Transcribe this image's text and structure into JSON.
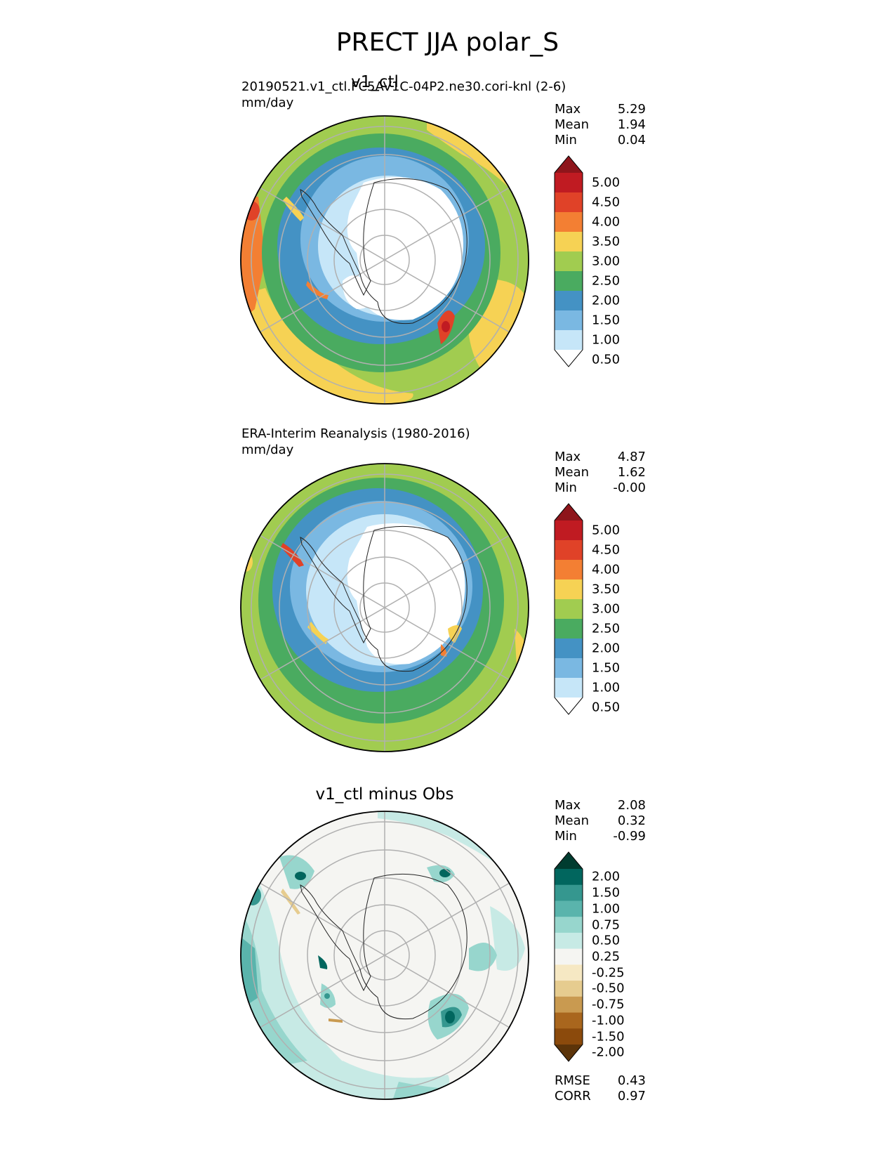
{
  "figure": {
    "title": "PRECT JJA polar_S"
  },
  "panels": [
    {
      "title": "v1_ctl",
      "subtitle": "20190521.v1_ctl.FC5AV1C-04P2.ne30.cori-knl (2-6)",
      "units": "mm/day",
      "stats": [
        {
          "label": "Max",
          "value": "5.29"
        },
        {
          "label": "Mean",
          "value": "1.94"
        },
        {
          "label": "Min",
          "value": "0.04"
        }
      ]
    },
    {
      "title": "",
      "subtitle": "ERA-Interim Reanalysis (1980-2016)",
      "units": "mm/day",
      "stats": [
        {
          "label": "Max",
          "value": "4.87"
        },
        {
          "label": "Mean",
          "value": "1.62"
        },
        {
          "label": "Min",
          "value": "-0.00"
        }
      ]
    },
    {
      "title": "v1_ctl minus Obs",
      "subtitle": "",
      "units": "",
      "stats": [
        {
          "label": "Max",
          "value": "2.08"
        },
        {
          "label": "Mean",
          "value": "0.32"
        },
        {
          "label": "Min",
          "value": "-0.99"
        }
      ],
      "extra_stats": [
        {
          "label": "RMSE",
          "value": "0.43"
        },
        {
          "label": "CORR",
          "value": "0.97"
        }
      ]
    }
  ],
  "chart_data": [
    {
      "type": "heatmap",
      "projection": "south polar stereographic",
      "title": "v1_ctl",
      "subtitle": "20190521.v1_ctl.FC5AV1C-04P2.ne30.cori-knl (2-6)",
      "units": "mm/day",
      "colorbar": {
        "levels": [
          "0.50",
          "1.00",
          "1.50",
          "2.00",
          "2.50",
          "3.00",
          "3.50",
          "4.00",
          "4.50",
          "5.00"
        ],
        "colors": [
          "#ffffff",
          "#c6e6f8",
          "#7ab8e2",
          "#4492c4",
          "#4aab60",
          "#a1cc50",
          "#f6d254",
          "#f37f33",
          "#e04228",
          "#c01b22",
          "#8e151b"
        ]
      },
      "stats": {
        "max": 5.29,
        "mean": 1.94,
        "min": 0.04
      }
    },
    {
      "type": "heatmap",
      "projection": "south polar stereographic",
      "subtitle": "ERA-Interim Reanalysis (1980-2016)",
      "units": "mm/day",
      "colorbar": {
        "levels": [
          "0.50",
          "1.00",
          "1.50",
          "2.00",
          "2.50",
          "3.00",
          "3.50",
          "4.00",
          "4.50",
          "5.00"
        ],
        "colors": [
          "#ffffff",
          "#c6e6f8",
          "#7ab8e2",
          "#4492c4",
          "#4aab60",
          "#a1cc50",
          "#f6d254",
          "#f37f33",
          "#e04228",
          "#c01b22",
          "#8e151b"
        ]
      },
      "stats": {
        "max": 4.87,
        "mean": 1.62,
        "min": -0.0
      }
    },
    {
      "type": "heatmap",
      "projection": "south polar stereographic",
      "title": "v1_ctl minus Obs",
      "colorbar": {
        "levels": [
          "2.00",
          "1.50",
          "1.00",
          "0.75",
          "0.50",
          "0.25",
          "-0.25",
          "-0.50",
          "-0.75",
          "-1.00",
          "-1.50",
          "-2.00"
        ],
        "colors": [
          "#003c30",
          "#01665e",
          "#35978f",
          "#5ab4ac",
          "#97d6cd",
          "#c7eae5",
          "#f5f5f2",
          "#f6e8c3",
          "#e6cc8f",
          "#c99a50",
          "#a9661d",
          "#8b4a0c",
          "#5c3409"
        ]
      },
      "stats": {
        "max": 2.08,
        "mean": 0.32,
        "min": -0.99,
        "rmse": 0.43,
        "corr": 0.97
      }
    }
  ]
}
